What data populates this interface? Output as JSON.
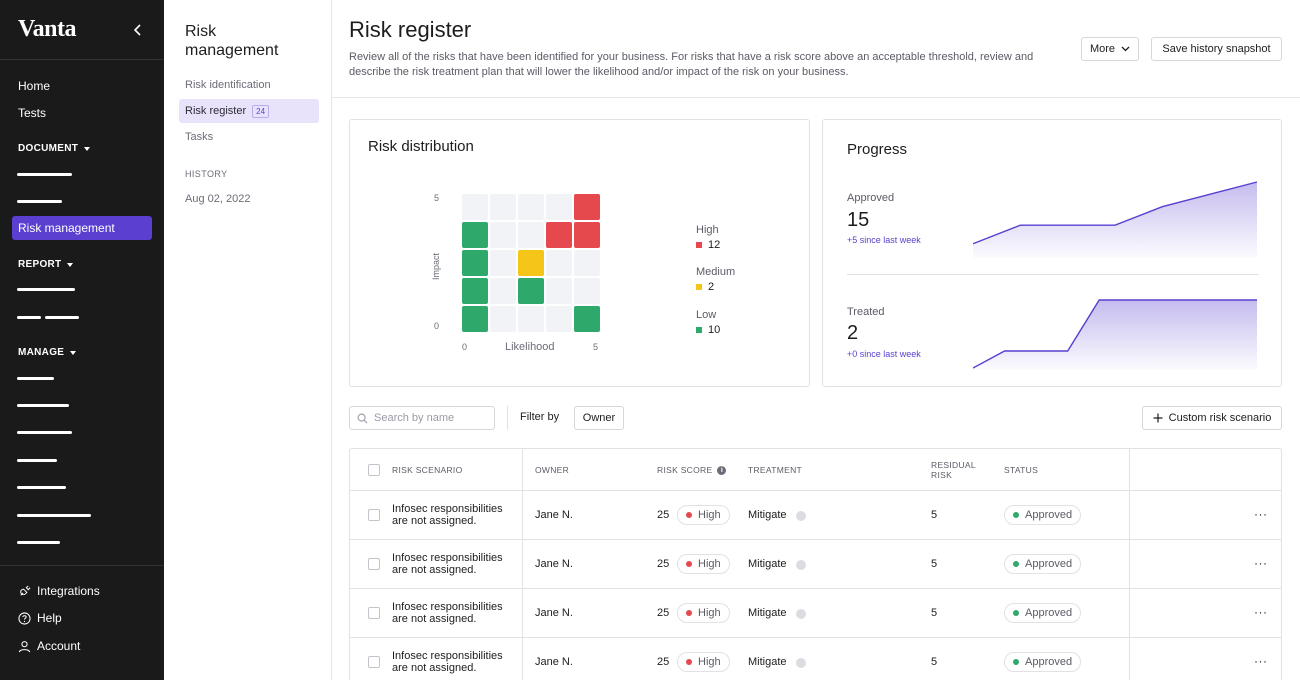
{
  "sidebar": {
    "logo": "Vanta",
    "items": {
      "home": "Home",
      "tests": "Tests",
      "risk_management": "Risk management"
    },
    "sections": {
      "document": "DOCUMENT",
      "report": "REPORT",
      "manage": "MANAGE"
    },
    "bottom": {
      "integrations": "Integrations",
      "help": "Help",
      "account": "Account"
    }
  },
  "subnav": {
    "title_line1": "Risk",
    "title_line2": "management",
    "links": {
      "identification": "Risk identification",
      "register": "Risk register",
      "register_count": "24",
      "tasks": "Tasks"
    },
    "history_heading": "HISTORY",
    "history_date": "Aug 02, 2022"
  },
  "header": {
    "title": "Risk register",
    "description": "Review all of the risks that have been identified for your business. For risks that have a risk score above an acceptable threshold, review and describe the risk treatment plan that will lower the likelihood and/or impact of the risk on your business.",
    "more_label": "More",
    "snapshot_label": "Save history snapshot"
  },
  "distribution": {
    "title": "Risk distribution",
    "ylabel": "Impact",
    "xlabel": "Likelihood",
    "y_max": "5",
    "y_min": "0",
    "x_min": "0",
    "x_max": "5",
    "legend": [
      {
        "label": "High",
        "value": "12",
        "color": "#e5484d"
      },
      {
        "label": "Medium",
        "value": "2",
        "color": "#f5c518"
      },
      {
        "label": "Low",
        "value": "10",
        "color": "#2fa86b"
      }
    ],
    "colors": {
      "high": "#e5484d",
      "medium": "#f5c518",
      "low": "#2fa86b",
      "empty": "#f2f3f6"
    },
    "grid": [
      [
        "empty",
        "empty",
        "empty",
        "empty",
        "high"
      ],
      [
        "low",
        "empty",
        "empty",
        "high",
        "high"
      ],
      [
        "low",
        "empty",
        "medium",
        "empty",
        "empty"
      ],
      [
        "low",
        "empty",
        "low",
        "empty",
        "empty"
      ],
      [
        "low",
        "empty",
        "empty",
        "empty",
        "low"
      ]
    ]
  },
  "progress": {
    "title": "Progress",
    "approved": {
      "label": "Approved",
      "value": "15",
      "delta": "+5 since last week",
      "trend": [
        2,
        5,
        5,
        5,
        8,
        10,
        12
      ]
    },
    "treated": {
      "label": "Treated",
      "value": "2",
      "delta": "+0 since last week",
      "trend": [
        0,
        0.5,
        0.5,
        0.5,
        2,
        2,
        2,
        2,
        2,
        2
      ]
    },
    "accent": "#5a3fd0"
  },
  "toolbar": {
    "search_placeholder": "Search by name",
    "filter_label": "Filter by",
    "owner_filter": "Owner",
    "custom_label": "Custom risk scenario"
  },
  "table": {
    "headers": {
      "scenario": "RISK SCENARIO",
      "owner": "OWNER",
      "score": "RISK SCORE",
      "treatment": "TREATMENT",
      "residual_1": "RESIDUAL",
      "residual_2": "RISK",
      "status": "STATUS"
    },
    "rows": [
      {
        "scenario_1": "Infosec responsibilities",
        "scenario_2": "are not assigned.",
        "owner": "Jane N.",
        "score": "25",
        "level": "High",
        "treatment": "Mitigate",
        "residual": "5",
        "status": "Approved"
      },
      {
        "scenario_1": "Infosec responsibilities",
        "scenario_2": "are not assigned.",
        "owner": "Jane N.",
        "score": "25",
        "level": "High",
        "treatment": "Mitigate",
        "residual": "5",
        "status": "Approved"
      },
      {
        "scenario_1": "Infosec responsibilities",
        "scenario_2": "are not assigned.",
        "owner": "Jane N.",
        "score": "25",
        "level": "High",
        "treatment": "Mitigate",
        "residual": "5",
        "status": "Approved"
      },
      {
        "scenario_1": "Infosec responsibilities",
        "scenario_2": "are not assigned.",
        "owner": "Jane N.",
        "score": "25",
        "level": "High",
        "treatment": "Mitigate",
        "residual": "5",
        "status": "Approved"
      }
    ],
    "more_glyph": "···"
  }
}
